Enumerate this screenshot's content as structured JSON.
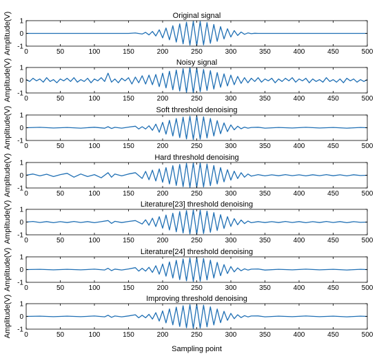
{
  "figure": {
    "xlabel": "Sampling point"
  },
  "style": {
    "line_color": "#1f6fb4",
    "axis_color": "#000000",
    "background": "#ffffff"
  },
  "chart_data": [
    {
      "type": "line",
      "title": "Original signal",
      "ylabel": "Amplitude(V)",
      "xlim": [
        0,
        500
      ],
      "ylim": [
        -1,
        1
      ],
      "xticks": [
        0,
        50,
        100,
        150,
        200,
        250,
        300,
        350,
        400,
        450,
        500
      ],
      "yticks": [
        -1,
        0,
        1
      ],
      "grid": false,
      "series": [
        {
          "x": [
            0,
            150,
            160,
            170,
            175,
            180,
            185,
            190,
            195,
            200,
            205,
            210,
            215,
            220,
            225,
            230,
            235,
            240,
            245,
            250,
            255,
            260,
            265,
            270,
            275,
            280,
            285,
            290,
            295,
            300,
            305,
            310,
            315,
            320,
            325,
            330,
            335,
            340,
            350,
            500
          ],
          "values": [
            0,
            0,
            0.03,
            -0.05,
            0.08,
            -0.12,
            0.15,
            -0.2,
            0.28,
            -0.35,
            0.42,
            -0.5,
            0.6,
            -0.68,
            0.75,
            -0.82,
            0.88,
            -0.92,
            0.95,
            -0.96,
            0.94,
            -0.9,
            0.85,
            -0.78,
            0.7,
            -0.62,
            0.53,
            -0.44,
            0.36,
            -0.28,
            0.22,
            -0.16,
            0.11,
            -0.07,
            0.04,
            -0.02,
            0.01,
            0,
            0,
            0
          ]
        }
      ]
    },
    {
      "type": "line",
      "title": "Noisy signal",
      "ylabel": "Amplitude(V)",
      "xlim": [
        0,
        500
      ],
      "ylim": [
        -1,
        1
      ],
      "xticks": [
        0,
        50,
        100,
        150,
        200,
        250,
        300,
        350,
        400,
        450,
        500
      ],
      "yticks": [
        -1,
        0,
        1
      ],
      "grid": false,
      "series": [
        {
          "x": [
            0,
            5,
            10,
            15,
            20,
            25,
            30,
            35,
            40,
            45,
            50,
            55,
            60,
            65,
            70,
            75,
            80,
            85,
            90,
            95,
            100,
            105,
            110,
            115,
            120,
            125,
            130,
            135,
            140,
            145,
            150,
            155,
            160,
            165,
            170,
            175,
            180,
            185,
            190,
            195,
            200,
            205,
            210,
            215,
            220,
            225,
            230,
            235,
            240,
            245,
            250,
            255,
            260,
            265,
            270,
            275,
            280,
            285,
            290,
            295,
            300,
            305,
            310,
            315,
            320,
            325,
            330,
            335,
            340,
            345,
            350,
            355,
            360,
            365,
            370,
            375,
            380,
            385,
            390,
            395,
            400,
            405,
            410,
            415,
            420,
            425,
            430,
            435,
            440,
            445,
            450,
            455,
            460,
            465,
            470,
            475,
            480,
            485,
            490,
            495,
            500
          ],
          "values": [
            0.05,
            -0.1,
            0.15,
            -0.05,
            0.1,
            -0.15,
            0.2,
            -0.1,
            0.05,
            -0.2,
            0.1,
            -0.05,
            0.15,
            -0.1,
            0.2,
            -0.15,
            0.05,
            -0.1,
            0.15,
            -0.2,
            0.1,
            -0.05,
            0.2,
            -0.1,
            0.55,
            -0.15,
            0.1,
            -0.2,
            0.15,
            -0.05,
            0.2,
            -0.3,
            0.25,
            -0.2,
            0.35,
            -0.3,
            0.4,
            -0.35,
            0.45,
            -0.5,
            0.55,
            -0.6,
            0.7,
            -0.75,
            0.8,
            -0.85,
            0.9,
            -0.95,
            1.0,
            -1.0,
            0.95,
            -0.9,
            0.85,
            -0.8,
            0.75,
            -0.7,
            0.6,
            -0.55,
            0.5,
            -0.45,
            0.4,
            -0.35,
            0.3,
            -0.25,
            0.2,
            -0.2,
            0.15,
            -0.1,
            0.2,
            -0.15,
            0.1,
            -0.05,
            0.15,
            -0.2,
            0.1,
            -0.1,
            0.15,
            -0.05,
            0.2,
            -0.15,
            0.1,
            -0.05,
            0.15,
            -0.2,
            0.1,
            -0.1,
            0.05,
            -0.15,
            0.2,
            -0.1,
            0.05,
            -0.15,
            0.1,
            -0.2,
            0.15,
            -0.05,
            0.1,
            -0.15,
            0.05,
            -0.1,
            0.05
          ]
        }
      ]
    },
    {
      "type": "line",
      "title": "Soft threshold denoising",
      "ylabel": "Amplitude(V)",
      "xlim": [
        0,
        500
      ],
      "ylim": [
        -1,
        1
      ],
      "xticks": [
        0,
        50,
        100,
        150,
        200,
        250,
        300,
        350,
        400,
        450,
        500
      ],
      "yticks": [
        -1,
        0,
        1
      ],
      "grid": false,
      "series": [
        {
          "x": [
            0,
            20,
            40,
            60,
            80,
            100,
            115,
            120,
            125,
            130,
            140,
            150,
            160,
            165,
            170,
            175,
            180,
            185,
            190,
            195,
            200,
            205,
            210,
            215,
            220,
            225,
            230,
            235,
            240,
            245,
            250,
            255,
            260,
            265,
            270,
            275,
            280,
            285,
            290,
            295,
            300,
            305,
            310,
            315,
            320,
            325,
            330,
            340,
            350,
            370,
            390,
            410,
            430,
            450,
            470,
            490,
            500
          ],
          "values": [
            0,
            0.03,
            -0.02,
            0.02,
            -0.03,
            0.04,
            -0.04,
            0.08,
            -0.06,
            0.03,
            -0.03,
            0.05,
            0.12,
            -0.1,
            0.08,
            -0.1,
            0.15,
            -0.2,
            0.28,
            -0.35,
            0.42,
            -0.5,
            0.58,
            -0.65,
            0.72,
            -0.78,
            0.83,
            -0.88,
            0.9,
            -0.92,
            0.92,
            -0.9,
            0.86,
            -0.8,
            0.73,
            -0.65,
            0.56,
            -0.47,
            0.38,
            -0.3,
            0.22,
            -0.16,
            0.12,
            -0.08,
            0.05,
            -0.03,
            0.02,
            0.04,
            -0.03,
            0.02,
            -0.02,
            0.03,
            -0.02,
            0.02,
            -0.03,
            0.02,
            0
          ]
        }
      ]
    },
    {
      "type": "line",
      "title": "Hard threshold denoising",
      "ylabel": "Amplitude(V)",
      "xlim": [
        0,
        500
      ],
      "ylim": [
        -1,
        1
      ],
      "xticks": [
        0,
        50,
        100,
        150,
        200,
        250,
        300,
        350,
        400,
        450,
        500
      ],
      "yticks": [
        -1,
        0,
        1
      ],
      "grid": false,
      "series": [
        {
          "x": [
            0,
            10,
            20,
            30,
            40,
            50,
            60,
            70,
            80,
            90,
            100,
            110,
            120,
            125,
            130,
            140,
            150,
            160,
            170,
            175,
            180,
            185,
            190,
            195,
            200,
            205,
            210,
            215,
            220,
            225,
            230,
            235,
            240,
            245,
            250,
            255,
            260,
            265,
            270,
            275,
            280,
            285,
            290,
            295,
            300,
            305,
            310,
            315,
            320,
            325,
            330,
            340,
            350,
            360,
            370,
            380,
            390,
            400,
            410,
            420,
            430,
            440,
            450,
            460,
            470,
            480,
            490,
            500
          ],
          "values": [
            0,
            0.1,
            -0.05,
            0.08,
            -0.1,
            0.05,
            0.15,
            -0.15,
            0.1,
            -0.1,
            0.05,
            -0.2,
            0.2,
            -0.15,
            0.1,
            -0.05,
            0.1,
            0.2,
            -0.25,
            0.3,
            -0.35,
            0.4,
            -0.45,
            0.5,
            -0.55,
            0.6,
            -0.68,
            0.75,
            -0.8,
            0.85,
            -0.9,
            0.93,
            -0.95,
            0.96,
            -0.96,
            0.95,
            -0.92,
            0.88,
            -0.82,
            0.76,
            -0.68,
            0.6,
            -0.52,
            0.44,
            -0.38,
            0.32,
            -0.26,
            0.2,
            -0.15,
            0.1,
            -0.07,
            0.05,
            -0.05,
            0.03,
            -0.04,
            0.05,
            -0.03,
            0.03,
            -0.05,
            0.04,
            -0.03,
            0.05,
            -0.04,
            0.03,
            -0.05,
            0.04,
            -0.02,
            0
          ]
        }
      ]
    },
    {
      "type": "line",
      "title": "Literature[23] threshold denoising",
      "ylabel": "Amplitude(V)",
      "xlim": [
        0,
        500
      ],
      "ylim": [
        -1,
        1
      ],
      "xticks": [
        0,
        50,
        100,
        150,
        200,
        250,
        300,
        350,
        400,
        450,
        500
      ],
      "yticks": [
        -1,
        0,
        1
      ],
      "grid": false,
      "series": [
        {
          "x": [
            0,
            10,
            20,
            30,
            40,
            50,
            60,
            70,
            80,
            90,
            100,
            110,
            120,
            125,
            130,
            140,
            150,
            160,
            170,
            175,
            180,
            185,
            190,
            195,
            200,
            205,
            210,
            215,
            220,
            225,
            230,
            235,
            240,
            245,
            250,
            255,
            260,
            265,
            270,
            275,
            280,
            285,
            290,
            295,
            300,
            305,
            310,
            315,
            320,
            325,
            330,
            340,
            350,
            360,
            370,
            380,
            390,
            400,
            410,
            420,
            430,
            440,
            450,
            460,
            470,
            480,
            490,
            500
          ],
          "values": [
            0,
            0.05,
            -0.03,
            0.04,
            -0.05,
            0.03,
            -0.04,
            0.05,
            -0.03,
            0.04,
            -0.05,
            0.03,
            0.12,
            -0.1,
            0.06,
            -0.04,
            0.05,
            0.12,
            -0.15,
            0.18,
            -0.25,
            0.3,
            -0.35,
            0.42,
            -0.48,
            0.55,
            -0.62,
            0.7,
            -0.76,
            0.82,
            -0.86,
            0.9,
            -0.93,
            0.94,
            -0.95,
            0.93,
            -0.9,
            0.86,
            -0.8,
            0.74,
            -0.66,
            0.58,
            -0.5,
            0.42,
            -0.34,
            0.27,
            -0.21,
            0.16,
            -0.12,
            0.08,
            -0.05,
            0.04,
            -0.04,
            0.03,
            -0.04,
            0.05,
            -0.03,
            0.04,
            -0.05,
            0.03,
            -0.04,
            0.05,
            -0.03,
            0.04,
            -0.05,
            0.03,
            -0.02,
            0
          ]
        }
      ]
    },
    {
      "type": "line",
      "title": "Literature[24] threshold denoising",
      "ylabel": "Amplitude(V)",
      "xlim": [
        0,
        500
      ],
      "ylim": [
        -1,
        1
      ],
      "xticks": [
        0,
        50,
        100,
        150,
        200,
        250,
        300,
        350,
        400,
        450,
        500
      ],
      "yticks": [
        -1,
        0,
        1
      ],
      "grid": false,
      "series": [
        {
          "x": [
            0,
            20,
            40,
            60,
            80,
            100,
            115,
            120,
            125,
            130,
            140,
            150,
            160,
            165,
            170,
            175,
            180,
            185,
            190,
            195,
            200,
            205,
            210,
            215,
            220,
            225,
            230,
            235,
            240,
            245,
            250,
            255,
            260,
            265,
            270,
            275,
            280,
            285,
            290,
            295,
            300,
            305,
            310,
            315,
            320,
            325,
            330,
            340,
            350,
            370,
            390,
            410,
            430,
            450,
            470,
            490,
            500
          ],
          "values": [
            0,
            0.02,
            -0.02,
            0.02,
            -0.02,
            0.03,
            -0.03,
            0.1,
            -0.08,
            0.04,
            -0.03,
            0.05,
            0.15,
            -0.12,
            0.1,
            -0.12,
            0.18,
            -0.22,
            0.3,
            -0.36,
            0.44,
            -0.52,
            0.6,
            -0.66,
            0.73,
            -0.79,
            0.84,
            -0.88,
            0.91,
            -0.93,
            0.93,
            -0.91,
            0.87,
            -0.81,
            0.74,
            -0.66,
            0.57,
            -0.48,
            0.39,
            -0.31,
            0.24,
            -0.18,
            0.13,
            -0.09,
            0.06,
            -0.04,
            0.03,
            0.05,
            -0.04,
            0.02,
            -0.02,
            0.03,
            -0.02,
            0.02,
            -0.03,
            0.02,
            0
          ]
        }
      ]
    },
    {
      "type": "line",
      "title": "Improving threshold denoising",
      "ylabel": "Amplitude(V)",
      "xlim": [
        0,
        500
      ],
      "ylim": [
        -1,
        1
      ],
      "xticks": [
        0,
        50,
        100,
        150,
        200,
        250,
        300,
        350,
        400,
        450,
        500
      ],
      "yticks": [
        -1,
        0,
        1
      ],
      "grid": false,
      "series": [
        {
          "x": [
            0,
            20,
            40,
            60,
            80,
            100,
            115,
            120,
            125,
            130,
            140,
            150,
            160,
            165,
            170,
            175,
            180,
            185,
            190,
            195,
            200,
            205,
            210,
            215,
            220,
            225,
            230,
            235,
            240,
            245,
            250,
            255,
            260,
            265,
            270,
            275,
            280,
            285,
            290,
            295,
            300,
            305,
            310,
            315,
            320,
            325,
            330,
            340,
            350,
            370,
            390,
            410,
            430,
            450,
            470,
            490,
            500
          ],
          "values": [
            0,
            0.02,
            -0.02,
            0.02,
            -0.02,
            0.03,
            -0.03,
            0.09,
            -0.07,
            0.03,
            -0.03,
            0.04,
            0.13,
            -0.11,
            0.09,
            -0.11,
            0.16,
            -0.21,
            0.29,
            -0.36,
            0.43,
            -0.51,
            0.59,
            -0.66,
            0.73,
            -0.79,
            0.84,
            -0.89,
            0.92,
            -0.94,
            0.94,
            -0.92,
            0.88,
            -0.82,
            0.75,
            -0.67,
            0.58,
            -0.49,
            0.4,
            -0.31,
            0.24,
            -0.18,
            0.13,
            -0.09,
            0.06,
            -0.04,
            0.03,
            0.04,
            -0.03,
            0.02,
            -0.02,
            0.03,
            -0.02,
            0.02,
            -0.03,
            0.02,
            0
          ]
        }
      ]
    }
  ]
}
